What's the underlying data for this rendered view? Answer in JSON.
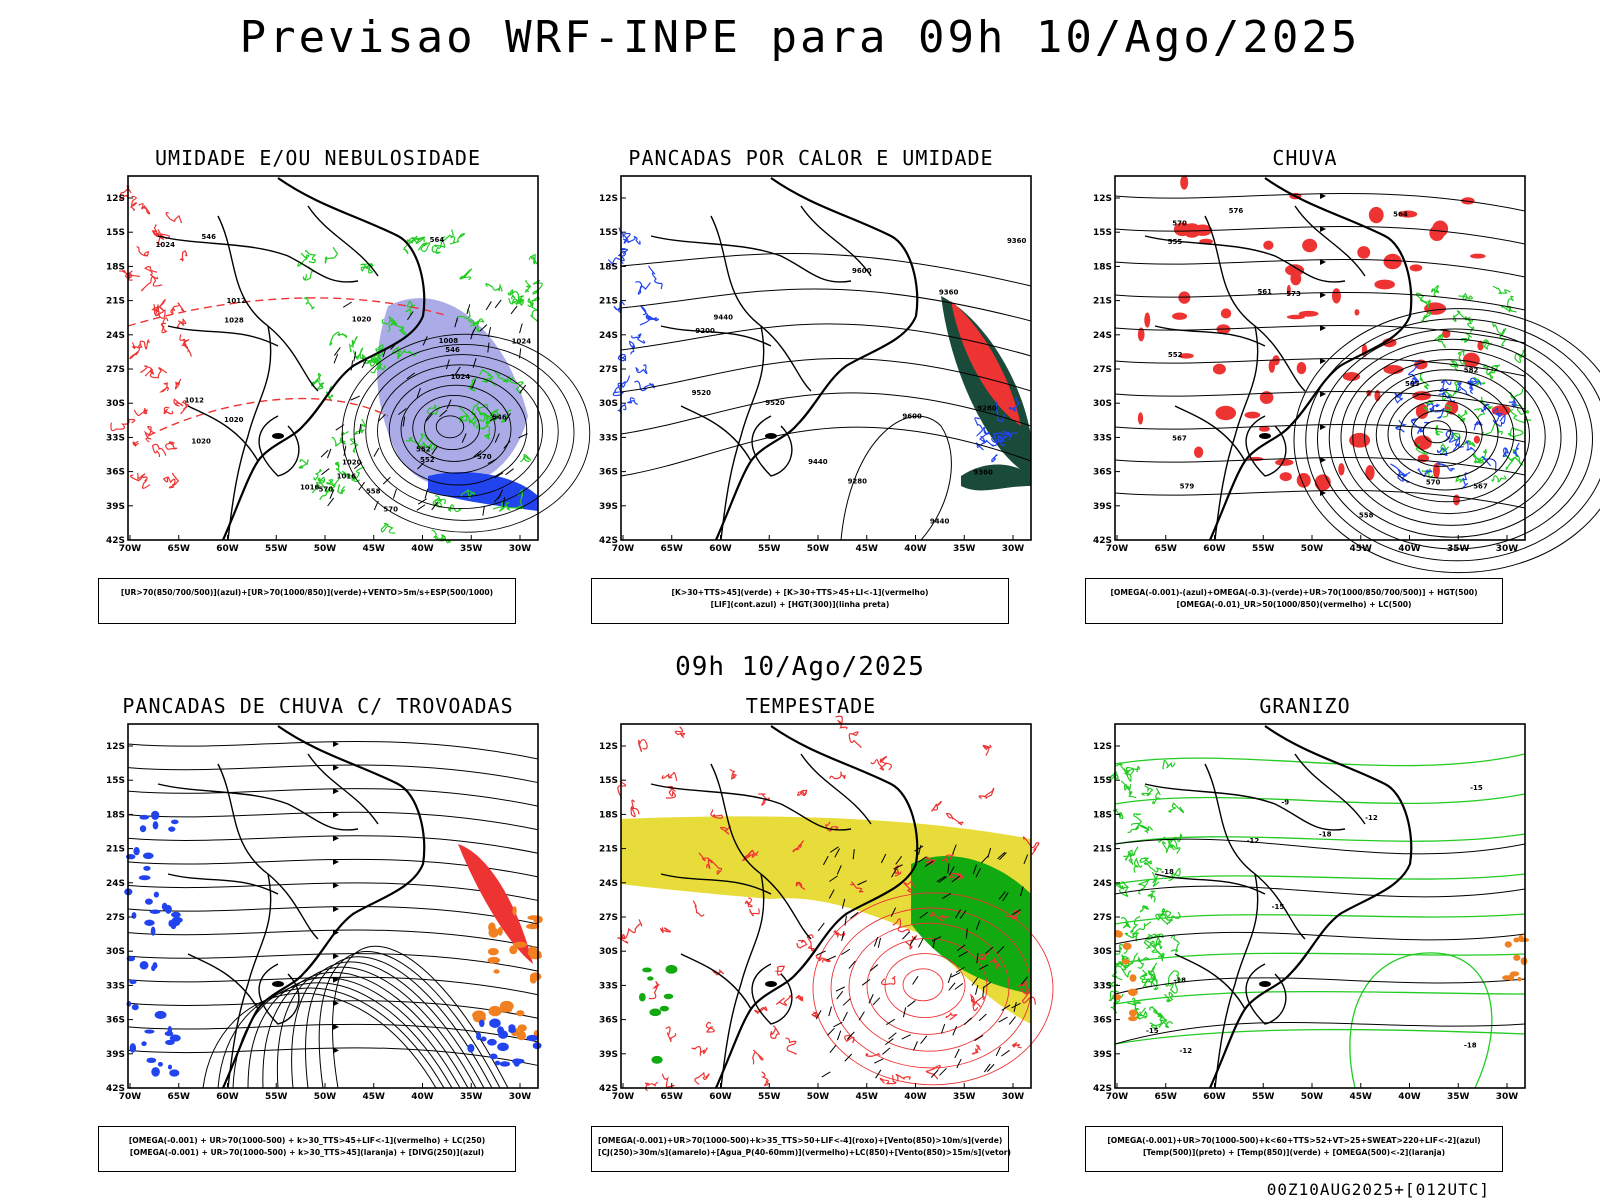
{
  "header": {
    "title": "Previsao WRF-INPE  para 09h 10/Ago/2025"
  },
  "middle": {
    "subtitle": "09h 10/Ago/2025"
  },
  "footer": {
    "run_info": "00Z10AUG2025+[012UTC]"
  },
  "axes": {
    "lat_labels": [
      "12S",
      "15S",
      "18S",
      "21S",
      "24S",
      "27S",
      "30S",
      "33S",
      "36S",
      "39S",
      "42S"
    ],
    "lon_labels": [
      "70W",
      "65W",
      "60W",
      "55W",
      "50W",
      "45W",
      "40W",
      "35W",
      "30W"
    ]
  },
  "colors": {
    "green": "#22cc22",
    "red": "#ee3333",
    "blue": "#2244ee",
    "purple": "#8888dd",
    "yellow": "#e8dc3a",
    "orange": "#f08020",
    "darkgreen": "#1a4a3a",
    "black": "#000000"
  },
  "panels": [
    {
      "id": "umidade",
      "title": "UMIDADE E/OU NEBULOSIDADE",
      "legend": [
        "[UR>70(850/700/500)](azul)+[UR>70(1000/850)](verde)+VENTO>5m/s+ESP(500/1000)"
      ],
      "contour_labels": [
        "1016",
        "1020",
        "1020",
        "1024",
        "1024",
        "1020",
        "1016",
        "1012",
        "1008",
        "1012",
        "1020",
        "570",
        "570",
        "570",
        "564",
        "558",
        "552",
        "552",
        "546",
        "546",
        "546",
        "1024",
        "1028"
      ]
    },
    {
      "id": "pancadas-calor",
      "title": "PANCADAS POR CALOR E UMIDADE",
      "legend": [
        "[K>30+TTS>45](verde) + [K>30+TTS>45+LI<-1](vermelho)",
        "[LIF](cont.azul) + [HGT(300)](linha preta)"
      ],
      "contour_labels": [
        "9600",
        "9600",
        "9520",
        "9520",
        "9440",
        "9440",
        "9360",
        "9360",
        "9280",
        "9280",
        "9200",
        "9360",
        "9440"
      ]
    },
    {
      "id": "chuva",
      "title": "CHUVA",
      "legend": [
        "[OMEGA(-0.001)-(azul)+OMEGA(-0.3)-(verde)+UR>70(1000/850/700/500)] + HGT(500)",
        "[OMEGA(-0.01)_UR>50(1000/850)(vermelho) + LC(500)"
      ],
      "contour_labels": [
        "585",
        "582",
        "579",
        "576",
        "573",
        "570",
        "567",
        "564",
        "561",
        "558",
        "555",
        "552",
        "570",
        "567"
      ]
    },
    {
      "id": "trovoadas",
      "title": "PANCADAS DE CHUVA C/ TROVOADAS",
      "legend": [
        "[OMEGA(-0.001) + UR>70(1000-500) + k>30_TTS>45+LIF<-1](vermelho) + LC(250)",
        "[OMEGA(-0.001) + UR>70(1000-500) + k>30_TTS>45](laranja) + [DIVG(250)](azul)"
      ],
      "contour_labels": []
    },
    {
      "id": "tempestade",
      "title": "TEMPESTADE",
      "legend": [
        "[OMEGA(-0.001)+UR>70(1000-500)+k>35_TTS>50+LIF<-4](roxo)+[Vento(850)>10m/s](verde)",
        "[CJ(250)>30m/s](amarelo)+[Agua_P(40-60mm)](vermelho)+LC(850)+[Vento(850)>15m/s](vetor)"
      ],
      "contour_labels": []
    },
    {
      "id": "granizo",
      "title": "GRANIZO",
      "legend": [
        "[OMEGA(-0.001)+UR>70(1000-500)+k<60+TTS>52+VT>25+SWEAT>220+LIF<-2](azul)",
        "[Temp(500)](preto) + [Temp(850)](verde) + [OMEGA(500)<-2](laranja)"
      ],
      "contour_labels": [
        "-18",
        "-18",
        "-15",
        "-15",
        "-12",
        "-12",
        "-9",
        "-18",
        "-18",
        "-12",
        "-15"
      ]
    }
  ]
}
